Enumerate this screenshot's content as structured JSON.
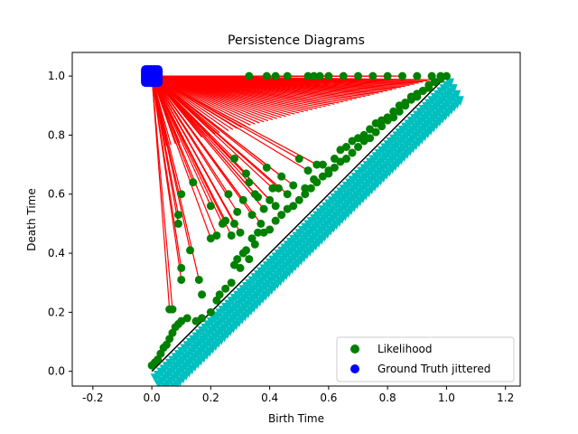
{
  "chart_data": {
    "type": "scatter",
    "title": "Persistence Diagrams",
    "xlabel": "Birth Time",
    "ylabel": "Death Time",
    "xlim": [
      -0.27,
      1.25
    ],
    "ylim": [
      -0.05,
      1.08
    ],
    "xticks": [
      -0.2,
      0.0,
      0.2,
      0.4,
      0.6,
      0.8,
      1.0,
      1.2
    ],
    "yticks": [
      0.0,
      0.2,
      0.4,
      0.6,
      0.8,
      1.0
    ],
    "grid": false,
    "legend_position": "lower-right",
    "diagonal": {
      "from": [
        0,
        0
      ],
      "to": [
        1,
        1
      ],
      "color": "#000000"
    },
    "series": [
      {
        "name": "Likelihood",
        "marker": "circle",
        "color": "#008000",
        "points": [
          [
            0.42,
            1.0
          ],
          [
            0.53,
            1.0
          ],
          [
            0.55,
            1.0
          ],
          [
            0.57,
            1.0
          ],
          [
            0.6,
            1.0
          ],
          [
            0.65,
            1.0
          ],
          [
            0.7,
            1.0
          ],
          [
            0.75,
            1.0
          ],
          [
            0.8,
            1.0
          ],
          [
            0.85,
            1.0
          ],
          [
            0.9,
            1.0
          ],
          [
            0.95,
            1.0
          ],
          [
            0.98,
            1.0
          ],
          [
            0.33,
            1.0
          ],
          [
            0.39,
            1.0
          ],
          [
            0.46,
            1.0
          ],
          [
            0.06,
            0.21
          ],
          [
            0.07,
            0.21
          ],
          [
            0.1,
            0.31
          ],
          [
            0.1,
            0.35
          ],
          [
            0.09,
            0.5
          ],
          [
            0.09,
            0.53
          ],
          [
            0.1,
            0.6
          ],
          [
            0.13,
            0.41
          ],
          [
            0.14,
            0.64
          ],
          [
            0.16,
            0.31
          ],
          [
            0.17,
            0.26
          ],
          [
            0.2,
            0.45
          ],
          [
            0.2,
            0.56
          ],
          [
            0.22,
            0.46
          ],
          [
            0.24,
            0.5
          ],
          [
            0.25,
            0.51
          ],
          [
            0.26,
            0.6
          ],
          [
            0.27,
            0.46
          ],
          [
            0.28,
            0.5
          ],
          [
            0.28,
            0.72
          ],
          [
            0.29,
            0.54
          ],
          [
            0.3,
            0.47
          ],
          [
            0.31,
            0.58
          ],
          [
            0.32,
            0.67
          ],
          [
            0.33,
            0.64
          ],
          [
            0.34,
            0.53
          ],
          [
            0.35,
            0.6
          ],
          [
            0.36,
            0.59
          ],
          [
            0.37,
            0.5
          ],
          [
            0.38,
            0.55
          ],
          [
            0.39,
            0.69
          ],
          [
            0.4,
            0.58
          ],
          [
            0.41,
            0.62
          ],
          [
            0.42,
            0.56
          ],
          [
            0.43,
            0.62
          ],
          [
            0.44,
            0.66
          ],
          [
            0.46,
            0.6
          ],
          [
            0.48,
            0.63
          ],
          [
            0.5,
            0.72
          ],
          [
            0.52,
            0.62
          ],
          [
            0.53,
            0.68
          ],
          [
            0.55,
            0.65
          ],
          [
            0.56,
            0.7
          ],
          [
            0.58,
            0.7
          ],
          [
            0.6,
            0.68
          ],
          [
            0.62,
            0.72
          ],
          [
            0.64,
            0.75
          ],
          [
            0.66,
            0.76
          ],
          [
            0.68,
            0.78
          ],
          [
            0.7,
            0.79
          ],
          [
            0.72,
            0.8
          ],
          [
            0.74,
            0.82
          ],
          [
            0.76,
            0.84
          ],
          [
            0.78,
            0.85
          ],
          [
            0.8,
            0.86
          ],
          [
            0.82,
            0.88
          ],
          [
            0.84,
            0.9
          ],
          [
            0.86,
            0.91
          ],
          [
            0.88,
            0.93
          ],
          [
            0.9,
            0.94
          ],
          [
            0.92,
            0.95
          ],
          [
            0.94,
            0.97
          ],
          [
            0.96,
            0.98
          ],
          [
            0.0,
            0.02
          ],
          [
            0.01,
            0.03
          ],
          [
            0.02,
            0.04
          ],
          [
            0.03,
            0.06
          ],
          [
            0.04,
            0.08
          ],
          [
            0.05,
            0.09
          ],
          [
            0.06,
            0.11
          ],
          [
            0.07,
            0.13
          ],
          [
            0.08,
            0.15
          ],
          [
            0.09,
            0.16
          ],
          [
            0.1,
            0.17
          ],
          [
            0.12,
            0.18
          ],
          [
            0.15,
            0.17
          ],
          [
            0.17,
            0.18
          ],
          [
            0.2,
            0.2
          ],
          [
            0.22,
            0.24
          ],
          [
            0.23,
            0.26
          ],
          [
            0.25,
            0.28
          ],
          [
            0.27,
            0.3
          ],
          [
            0.28,
            0.36
          ],
          [
            0.29,
            0.38
          ],
          [
            0.3,
            0.35
          ],
          [
            0.31,
            0.4
          ],
          [
            0.32,
            0.41
          ],
          [
            0.33,
            0.38
          ],
          [
            0.34,
            0.45
          ],
          [
            0.35,
            0.43
          ],
          [
            0.36,
            0.47
          ],
          [
            0.38,
            0.47
          ],
          [
            0.4,
            0.48
          ],
          [
            0.42,
            0.51
          ],
          [
            0.44,
            0.53
          ],
          [
            0.46,
            0.55
          ],
          [
            0.48,
            0.56
          ],
          [
            0.5,
            0.58
          ],
          [
            0.52,
            0.6
          ],
          [
            0.54,
            0.62
          ],
          [
            0.56,
            0.64
          ],
          [
            0.58,
            0.66
          ],
          [
            0.6,
            0.67
          ],
          [
            0.62,
            0.69
          ],
          [
            0.64,
            0.71
          ],
          [
            0.66,
            0.72
          ],
          [
            0.68,
            0.74
          ],
          [
            0.7,
            0.76
          ],
          [
            0.72,
            0.78
          ],
          [
            0.74,
            0.79
          ],
          [
            0.76,
            0.81
          ],
          [
            0.78,
            0.83
          ],
          [
            0.8,
            0.85
          ],
          [
            0.82,
            0.86
          ],
          [
            0.84,
            0.88
          ],
          [
            0.86,
            0.9
          ],
          [
            0.88,
            0.92
          ],
          [
            0.9,
            0.93
          ],
          [
            0.92,
            0.95
          ],
          [
            0.94,
            0.96
          ],
          [
            0.96,
            0.98
          ],
          [
            0.98,
            0.99
          ],
          [
            1.0,
            1.0
          ]
        ]
      },
      {
        "name": "Ground Truth jittered",
        "marker": "square",
        "color": "#0000ff",
        "points": [
          [
            0.0,
            1.0
          ]
        ]
      }
    ],
    "matching_lines": {
      "color": "#ff0000",
      "from": [
        0.0,
        1.0
      ]
    },
    "jittered_cloud": {
      "color": "#00bfbf",
      "band_offsets": [
        0.02,
        0.04,
        0.06,
        0.08
      ],
      "range": [
        0.0,
        1.0
      ]
    }
  }
}
